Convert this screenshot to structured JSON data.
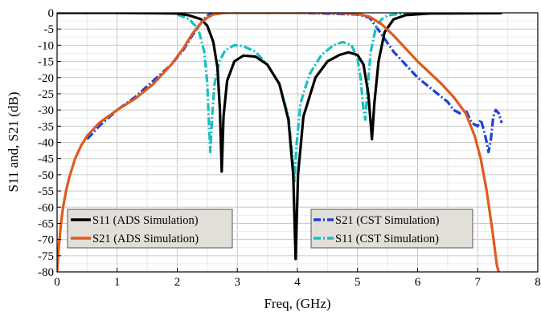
{
  "chart_data": {
    "type": "line",
    "xlabel": "Freq, (GHz)",
    "ylabel": "S11 and, S21 (dB)",
    "xlim": [
      0,
      8
    ],
    "ylim": [
      -80,
      0
    ],
    "xticks": [
      0,
      1,
      2,
      3,
      4,
      5,
      6,
      7,
      8
    ],
    "yticks": [
      0,
      -5,
      -10,
      -15,
      -20,
      -25,
      -30,
      -35,
      -40,
      -45,
      -50,
      -55,
      -60,
      -65,
      -70,
      -75,
      -80
    ],
    "grid": true,
    "legend_left": [
      "S11 (ADS Simulation)",
      "S21 (ADS Simulation)"
    ],
    "legend_right": [
      "S21 (CST Simulation)",
      "S11 (CST Simulation)"
    ],
    "series": [
      {
        "name": "S21 (CST Simulation)",
        "color": "#1f3fd6",
        "style": "dashdot",
        "points": [
          [
            0.5,
            -39
          ],
          [
            0.7,
            -35
          ],
          [
            1.0,
            -30
          ],
          [
            1.3,
            -26
          ],
          [
            1.6,
            -21
          ],
          [
            1.9,
            -16
          ],
          [
            2.1,
            -11.5
          ],
          [
            2.25,
            -7
          ],
          [
            2.4,
            -3
          ],
          [
            2.5,
            -0.8
          ],
          [
            2.6,
            0
          ],
          [
            3.0,
            0
          ],
          [
            4.0,
            0
          ],
          [
            5.0,
            -0.5
          ],
          [
            5.2,
            -1.5
          ],
          [
            5.3,
            -4
          ],
          [
            5.45,
            -8
          ],
          [
            5.6,
            -12
          ],
          [
            5.8,
            -16
          ],
          [
            6.0,
            -20
          ],
          [
            6.2,
            -23
          ],
          [
            6.4,
            -26
          ],
          [
            6.5,
            -27.5
          ],
          [
            6.6,
            -30
          ],
          [
            6.7,
            -31
          ],
          [
            6.8,
            -30
          ],
          [
            6.9,
            -34
          ],
          [
            7.0,
            -35
          ],
          [
            7.05,
            -33
          ],
          [
            7.1,
            -36
          ],
          [
            7.15,
            -40
          ],
          [
            7.18,
            -43
          ],
          [
            7.22,
            -39
          ],
          [
            7.26,
            -32
          ],
          [
            7.3,
            -30
          ],
          [
            7.35,
            -31
          ],
          [
            7.4,
            -34
          ]
        ]
      },
      {
        "name": "S11 (CST Simulation)",
        "color": "#1abfc0",
        "style": "dashdot",
        "points": [
          [
            2.0,
            -0.5
          ],
          [
            2.2,
            -2
          ],
          [
            2.35,
            -5
          ],
          [
            2.45,
            -12
          ],
          [
            2.5,
            -22
          ],
          [
            2.53,
            -35
          ],
          [
            2.55,
            -43
          ],
          [
            2.58,
            -32
          ],
          [
            2.62,
            -22
          ],
          [
            2.7,
            -15
          ],
          [
            2.8,
            -11.5
          ],
          [
            2.95,
            -10
          ],
          [
            3.1,
            -10.3
          ],
          [
            3.3,
            -12
          ],
          [
            3.5,
            -16
          ],
          [
            3.7,
            -22
          ],
          [
            3.85,
            -32
          ],
          [
            3.92,
            -45
          ],
          [
            3.95,
            -52
          ],
          [
            3.98,
            -42
          ],
          [
            4.05,
            -28
          ],
          [
            4.2,
            -19
          ],
          [
            4.4,
            -13
          ],
          [
            4.6,
            -10
          ],
          [
            4.75,
            -9
          ],
          [
            4.9,
            -10
          ],
          [
            5.0,
            -14
          ],
          [
            5.05,
            -20
          ],
          [
            5.1,
            -30
          ],
          [
            5.13,
            -33
          ],
          [
            5.16,
            -25
          ],
          [
            5.22,
            -12
          ],
          [
            5.3,
            -5
          ],
          [
            5.4,
            -2
          ],
          [
            5.5,
            -0.8
          ],
          [
            5.7,
            -0.3
          ],
          [
            6.0,
            -0.2
          ],
          [
            7.0,
            -0.1
          ],
          [
            7.4,
            -0.1
          ]
        ]
      },
      {
        "name": "S11 (ADS Simulation)",
        "color": "#000000",
        "style": "solid",
        "points": [
          [
            0.0,
            0
          ],
          [
            1.0,
            0
          ],
          [
            2.0,
            -0.2
          ],
          [
            2.2,
            -0.8
          ],
          [
            2.4,
            -2
          ],
          [
            2.5,
            -4
          ],
          [
            2.6,
            -9
          ],
          [
            2.67,
            -17
          ],
          [
            2.71,
            -30
          ],
          [
            2.74,
            -49
          ],
          [
            2.77,
            -32
          ],
          [
            2.83,
            -21
          ],
          [
            2.95,
            -15
          ],
          [
            3.1,
            -13.2
          ],
          [
            3.3,
            -13.5
          ],
          [
            3.5,
            -16
          ],
          [
            3.7,
            -22
          ],
          [
            3.85,
            -33
          ],
          [
            3.93,
            -50
          ],
          [
            3.97,
            -76
          ],
          [
            4.01,
            -50
          ],
          [
            4.1,
            -32
          ],
          [
            4.3,
            -20
          ],
          [
            4.5,
            -15
          ],
          [
            4.7,
            -13
          ],
          [
            4.85,
            -12.2
          ],
          [
            5.0,
            -13
          ],
          [
            5.1,
            -16
          ],
          [
            5.18,
            -25
          ],
          [
            5.24,
            -39
          ],
          [
            5.28,
            -28
          ],
          [
            5.35,
            -15
          ],
          [
            5.45,
            -6
          ],
          [
            5.6,
            -2
          ],
          [
            5.8,
            -0.7
          ],
          [
            6.2,
            -0.2
          ],
          [
            7.4,
            -0.1
          ]
        ]
      },
      {
        "name": "S21 (ADS Simulation)",
        "color": "#e05a1e",
        "style": "solid",
        "points": [
          [
            0.0,
            -80
          ],
          [
            0.03,
            -72
          ],
          [
            0.06,
            -66
          ],
          [
            0.1,
            -60
          ],
          [
            0.15,
            -55
          ],
          [
            0.2,
            -51
          ],
          [
            0.3,
            -45
          ],
          [
            0.4,
            -41
          ],
          [
            0.5,
            -38
          ],
          [
            0.7,
            -34
          ],
          [
            1.0,
            -30
          ],
          [
            1.3,
            -26.5
          ],
          [
            1.6,
            -22
          ],
          [
            1.9,
            -16
          ],
          [
            2.1,
            -11
          ],
          [
            2.25,
            -6.5
          ],
          [
            2.4,
            -3
          ],
          [
            2.5,
            -1.5
          ],
          [
            2.6,
            -0.5
          ],
          [
            2.8,
            0
          ],
          [
            3.5,
            0
          ],
          [
            4.5,
            0
          ],
          [
            5.0,
            -0.3
          ],
          [
            5.2,
            -1.2
          ],
          [
            5.4,
            -3.5
          ],
          [
            5.6,
            -7
          ],
          [
            5.8,
            -11
          ],
          [
            6.0,
            -15
          ],
          [
            6.2,
            -18.5
          ],
          [
            6.4,
            -22
          ],
          [
            6.6,
            -26
          ],
          [
            6.8,
            -31
          ],
          [
            6.95,
            -38
          ],
          [
            7.05,
            -45
          ],
          [
            7.15,
            -55
          ],
          [
            7.25,
            -68
          ],
          [
            7.32,
            -78
          ],
          [
            7.35,
            -80
          ]
        ]
      }
    ]
  }
}
